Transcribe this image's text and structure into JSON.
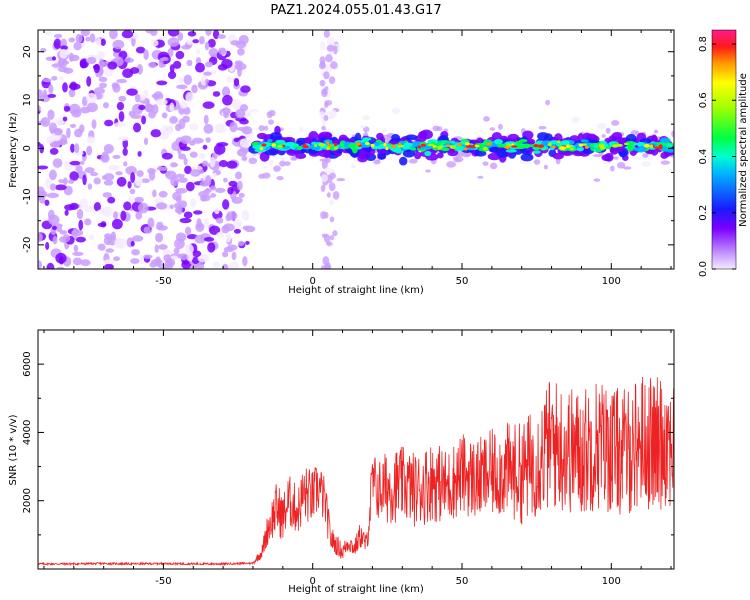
{
  "title": "PAZ1.2024.055.01.43.G17",
  "chart_data": [
    {
      "type": "heatmap",
      "xlabel": "Height of straight line (km)",
      "ylabel": "Frequency (Hz)",
      "xlim": [
        -92,
        121
      ],
      "ylim": [
        -25,
        24.5
      ],
      "xticks": [
        -50,
        0,
        50,
        100
      ],
      "yticks": [
        -20,
        -10,
        0,
        10,
        20
      ],
      "colorbar": {
        "label": "Normalized spectral amplitude",
        "range": [
          0,
          0.85
        ],
        "ticks": [
          0.0,
          0.2,
          0.4,
          0.6,
          0.8
        ]
      },
      "regions": [
        {
          "x_range": [
            -92,
            -21
          ],
          "frequency_range": [
            -25,
            24.5
          ],
          "amplitude": "low (0.0-0.1)",
          "description": "diffuse noise"
        },
        {
          "x_range": [
            3,
            8
          ],
          "frequency_range": [
            -25,
            24.5
          ],
          "amplitude": "very low",
          "description": "vertical noise stripe"
        },
        {
          "x_range": [
            -21,
            121
          ],
          "frequency_center": 0.5,
          "frequency_halfwidth": 2.5,
          "amplitude": "0.3-0.85",
          "description": "signal band near 0 Hz"
        }
      ]
    },
    {
      "type": "line",
      "xlabel": "Height of straight line (km)",
      "ylabel": "SNR (10 * v/v)",
      "xlim": [
        -92,
        121
      ],
      "ylim": [
        0,
        7000
      ],
      "xticks": [
        -50,
        0,
        50,
        100
      ],
      "yticks": [
        2000,
        4000,
        6000
      ],
      "color": "#ee2222",
      "x": [
        -92,
        -80,
        -70,
        -60,
        -50,
        -40,
        -30,
        -20,
        -17,
        -15,
        -12,
        -10,
        -8,
        -5,
        -3,
        0,
        2,
        4,
        6,
        8,
        10,
        12,
        14,
        16,
        18,
        20,
        22,
        25,
        30,
        35,
        40,
        45,
        50,
        55,
        60,
        65,
        70,
        75,
        80,
        85,
        90,
        95,
        100,
        105,
        110,
        115,
        118,
        121
      ],
      "values": [
        150,
        150,
        160,
        150,
        160,
        150,
        150,
        170,
        500,
        1200,
        1800,
        1500,
        2000,
        1700,
        2200,
        2100,
        2400,
        2000,
        900,
        700,
        500,
        800,
        600,
        1000,
        700,
        2500,
        2300,
        2400,
        2500,
        2300,
        2600,
        2400,
        2800,
        2600,
        2800,
        2900,
        2800,
        3200,
        3700,
        3500,
        3400,
        3700,
        3500,
        3400,
        3800,
        3600,
        3900,
        3700
      ],
      "noise_spread": [
        30,
        30,
        30,
        30,
        30,
        30,
        30,
        30,
        200,
        500,
        800,
        700,
        800,
        700,
        900,
        800,
        800,
        700,
        400,
        300,
        250,
        300,
        250,
        400,
        300,
        1000,
        900,
        1100,
        1100,
        1100,
        1200,
        1100,
        1200,
        1200,
        1300,
        1400,
        1500,
        1700,
        2000,
        1900,
        1900,
        2000,
        1900,
        1900,
        2000,
        2000,
        2100,
        2000
      ]
    }
  ]
}
